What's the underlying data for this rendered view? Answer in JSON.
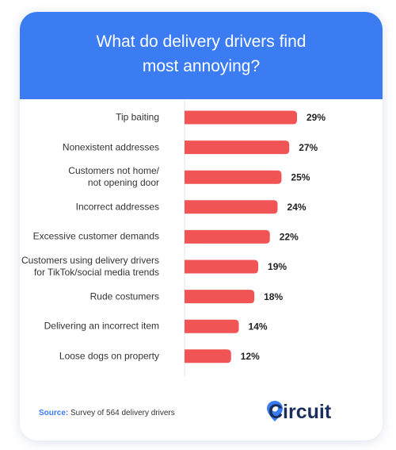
{
  "chart_data": {
    "type": "bar",
    "title": "What do delivery drivers find\nmost annoying?",
    "categories": [
      "Tip baiting",
      "Nonexistent addresses",
      "Customers not home/\nnot opening door",
      "Incorrect addresses",
      "Excessive customer demands",
      "Customers using delivery drivers\nfor TikTok/social media trends",
      "Rude costumers",
      "Delivering an incorrect item",
      "Loose dogs on property"
    ],
    "values": [
      29,
      27,
      25,
      24,
      22,
      19,
      18,
      14,
      12
    ],
    "value_labels": [
      "29%",
      "27%",
      "25%",
      "24%",
      "22%",
      "19%",
      "18%",
      "14%",
      "12%"
    ],
    "color": "#f05454"
  },
  "footer": {
    "source_label": "Source:",
    "source_text": "Survey of 564 delivery drivers",
    "brand": "Circuit"
  }
}
